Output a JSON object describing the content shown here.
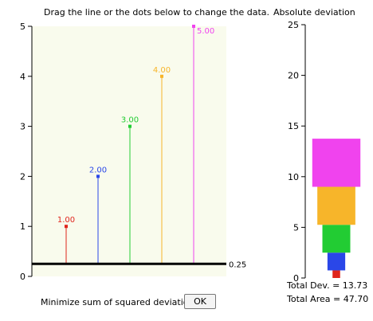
{
  "instruction": "Drag the line or the dots below to change the data.",
  "deviation_title": "Absolute deviation",
  "fit_line_label": "0.25",
  "controls": {
    "minimize_label": "Minimize sum of squared deviations",
    "ok_label": "OK"
  },
  "totals": {
    "dev_text": "Total Dev. = 13.73",
    "area_text": "Total Area = 47.70"
  },
  "colors": {
    "plot_background": "#f9fbed",
    "fit_line": "#000000"
  },
  "chart_data": [
    {
      "type": "scatter",
      "title": "",
      "xlabel": "",
      "ylabel": "",
      "ylim": [
        0,
        5
      ],
      "yticks": [
        "0",
        "1",
        "2",
        "3",
        "4",
        "5"
      ],
      "fit_line_value": 0.25,
      "points": [
        {
          "value": 1,
          "label": "1.00",
          "color": "#e0251c"
        },
        {
          "value": 2,
          "label": "2.00",
          "color": "#2a47e8"
        },
        {
          "value": 3,
          "label": "3.00",
          "color": "#22cc33"
        },
        {
          "value": 4,
          "label": "4.00",
          "color": "#f7b52a"
        },
        {
          "value": 5,
          "label": "5.00",
          "color": "#f043ee"
        }
      ]
    },
    {
      "type": "bar",
      "title": "Absolute deviation",
      "ylim": [
        0,
        25
      ],
      "yticks": [
        "0",
        "5",
        "10",
        "15",
        "20",
        "25"
      ],
      "stacked_deviations": [
        {
          "value": 0.75,
          "color": "#e0251c"
        },
        {
          "value": 1.75,
          "color": "#2a47e8"
        },
        {
          "value": 2.75,
          "color": "#22cc33"
        },
        {
          "value": 3.75,
          "color": "#f7b52a"
        },
        {
          "value": 4.75,
          "color": "#f043ee"
        }
      ]
    }
  ]
}
